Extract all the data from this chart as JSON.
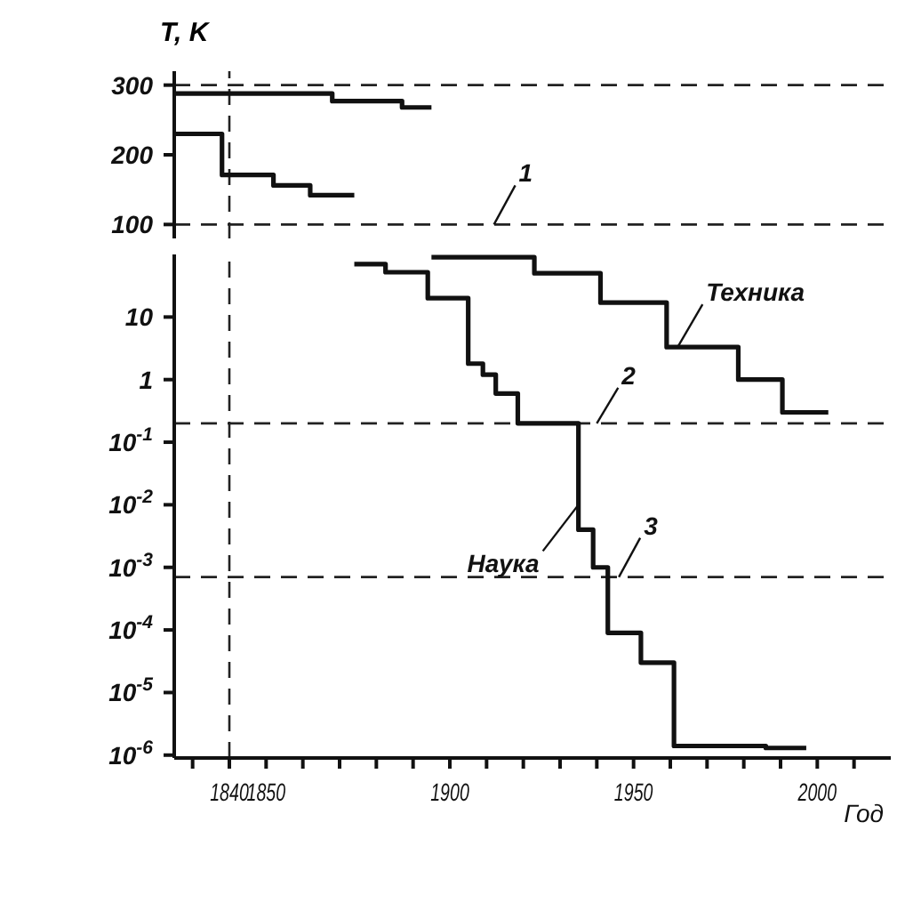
{
  "chart_data": [
    {
      "type": "step",
      "ylabel": "T, K",
      "xlim": [
        1825,
        2020
      ],
      "ylim": [
        80,
        320
      ],
      "yticks": [
        100,
        200,
        300
      ],
      "tick_labels": "y",
      "marker": "none",
      "line_style": "solid",
      "series": [
        {
          "color": "#111111",
          "x": [
            1825,
            1868,
            1887,
            1895
          ],
          "values": [
            288,
            277,
            268,
            268
          ]
        },
        {
          "color": "#111111",
          "x": [
            1825,
            1838,
            1852,
            1862,
            1874
          ],
          "values": [
            230,
            171,
            156,
            142,
            142
          ]
        }
      ],
      "ref_lines": [
        {
          "axis": "y",
          "value": 300,
          "line_style": "dashed"
        },
        {
          "axis": "y",
          "value": 100,
          "line_style": "dashed"
        },
        {
          "axis": "x",
          "value": 1840,
          "line_style": "dashed"
        }
      ],
      "annotations": [
        {
          "text": "1",
          "x": 1912,
          "y": 100
        }
      ]
    },
    {
      "type": "step",
      "xlabel": "Год",
      "xlim": [
        1825,
        2020
      ],
      "ylim": [
        9e-07,
        100
      ],
      "log": "y",
      "marker": "none",
      "line_style": "solid",
      "xticks": [
        {
          "value": 1830,
          "label": null
        },
        1840,
        1850,
        {
          "value": 1860,
          "label": null
        },
        {
          "value": 1870,
          "label": null
        },
        {
          "value": 1880,
          "label": null
        },
        {
          "value": 1890,
          "label": null
        },
        1900,
        {
          "value": 1910,
          "label": null
        },
        {
          "value": 1920,
          "label": null
        },
        {
          "value": 1930,
          "label": null
        },
        {
          "value": 1940,
          "label": null
        },
        1950,
        {
          "value": 1960,
          "label": null
        },
        {
          "value": 1970,
          "label": null
        },
        {
          "value": 1980,
          "label": null
        },
        {
          "value": 1990,
          "label": null
        },
        2000,
        {
          "value": 2010,
          "label": null
        }
      ],
      "yticks": [
        10,
        1,
        {
          "value": 0.1,
          "label": "10$^{-1}$"
        },
        {
          "value": 0.01,
          "label": "10$^{-2}$"
        },
        {
          "value": 0.001,
          "label": "10$^{-3}$"
        },
        {
          "value": 0.0001,
          "label": "10$^{-4}$"
        },
        {
          "value": 1e-05,
          "label": "10$^{-5}$"
        },
        {
          "value": 1e-06,
          "label": "10$^{-6}$"
        }
      ],
      "series": [
        {
          "color": "#111111",
          "x": [
            1895,
            1923,
            1941,
            1959,
            1978.5,
            1990.5,
            2003
          ],
          "values": [
            90,
            50,
            17,
            3.3,
            1,
            0.3,
            0.3
          ]
        },
        {
          "color": "#111111",
          "x": [
            1874,
            1882.5,
            1894,
            1905,
            1909,
            1912.5,
            1918.5,
            1935,
            1939,
            1943,
            1952,
            1961,
            1986,
            1997
          ],
          "values": [
            70,
            52,
            20,
            1.8,
            1.2,
            0.6,
            0.2,
            0.004,
            0.001,
            9e-05,
            3e-05,
            1.4e-06,
            1.3e-06,
            1.3e-06
          ]
        }
      ],
      "ref_lines": [
        {
          "axis": "y",
          "value": 0.2,
          "line_style": "dashed"
        },
        {
          "axis": "y",
          "value": 0.0007,
          "line_style": "dashed"
        },
        {
          "axis": "x",
          "value": 1840,
          "line_style": "dashed"
        }
      ],
      "annotations": [
        {
          "text": "2",
          "x": 1940,
          "y": 0.2
        },
        {
          "text": "3",
          "x": 1946,
          "y": 0.0007
        },
        {
          "text": "Техника",
          "x": 1962,
          "y": 3.3
        },
        {
          "text": "Наука",
          "x": 1935,
          "y": 0.01
        }
      ]
    }
  ]
}
